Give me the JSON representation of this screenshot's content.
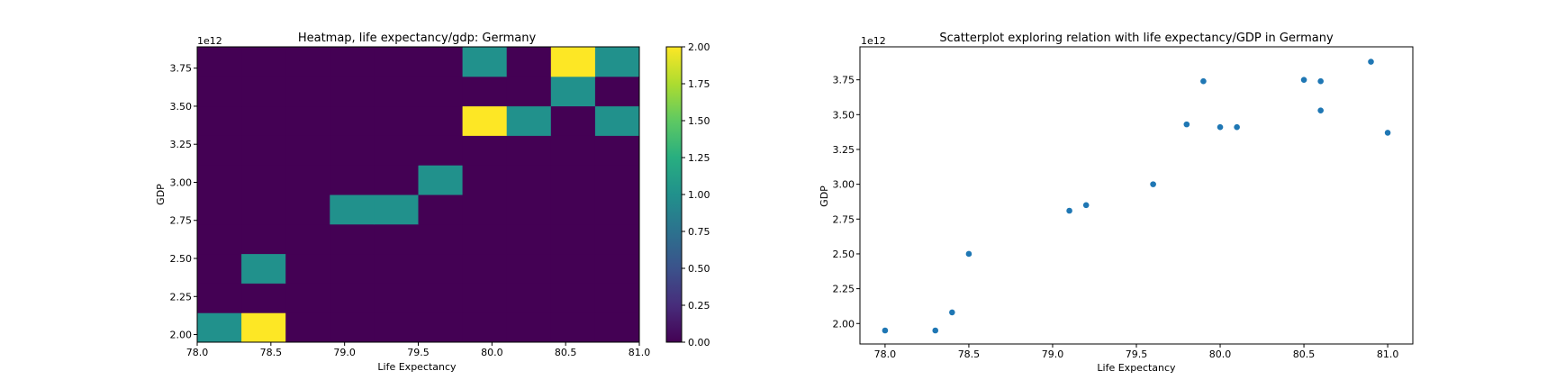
{
  "chart_data": [
    {
      "type": "heatmap",
      "title": "Heatmap, life expectancy/gdp: Germany",
      "xlabel": "Life Expectancy",
      "ylabel": "GDP",
      "y_offset_label": "1e12",
      "xlim": [
        78.0,
        81.0
      ],
      "ylim": [
        1.95,
        3.89
      ],
      "x_edges": [
        78.0,
        78.3,
        78.6,
        78.9,
        79.2,
        79.5,
        79.8,
        80.1,
        80.4,
        80.7,
        81.0
      ],
      "y_edges": [
        1.95,
        2.144,
        2.338,
        2.532,
        2.726,
        2.92,
        3.114,
        3.308,
        3.502,
        3.696,
        3.89
      ],
      "counts": [
        [
          1,
          2,
          0,
          0,
          0,
          0,
          0,
          0,
          0,
          0
        ],
        [
          0,
          0,
          0,
          0,
          0,
          0,
          0,
          0,
          0,
          0
        ],
        [
          0,
          1,
          0,
          0,
          0,
          0,
          0,
          0,
          0,
          0
        ],
        [
          0,
          0,
          0,
          0,
          0,
          0,
          0,
          0,
          0,
          0
        ],
        [
          0,
          0,
          0,
          1,
          1,
          0,
          0,
          0,
          0,
          0
        ],
        [
          0,
          0,
          0,
          0,
          0,
          1,
          0,
          0,
          0,
          0
        ],
        [
          0,
          0,
          0,
          0,
          0,
          0,
          0,
          0,
          0,
          0
        ],
        [
          0,
          0,
          0,
          0,
          0,
          0,
          2,
          1,
          0,
          1
        ],
        [
          0,
          0,
          0,
          0,
          0,
          0,
          0,
          0,
          1,
          0
        ],
        [
          0,
          0,
          0,
          0,
          0,
          0,
          1,
          0,
          2,
          1
        ]
      ],
      "x_ticks": [
        "78.0",
        "78.5",
        "79.0",
        "79.5",
        "80.0",
        "80.5",
        "81.0"
      ],
      "x_tick_values": [
        78.0,
        78.5,
        79.0,
        79.5,
        80.0,
        80.5,
        81.0
      ],
      "y_ticks": [
        "2.00",
        "2.25",
        "2.50",
        "2.75",
        "3.00",
        "3.25",
        "3.50",
        "3.75"
      ],
      "y_tick_values": [
        2.0,
        2.25,
        2.5,
        2.75,
        3.0,
        3.25,
        3.5,
        3.75
      ],
      "colorbar": {
        "colormap": "viridis",
        "range": [
          0,
          2
        ],
        "ticks": [
          "0.00",
          "0.25",
          "0.50",
          "0.75",
          "1.00",
          "1.25",
          "1.50",
          "1.75",
          "2.00"
        ],
        "tick_values": [
          0,
          0.25,
          0.5,
          0.75,
          1.0,
          1.25,
          1.5,
          1.75,
          2.0
        ]
      }
    },
    {
      "type": "scatter",
      "title": "Scatterplot exploring relation with life expectancy/GDP in Germany",
      "xlabel": "Life Expectancy",
      "ylabel": "GDP",
      "y_offset_label": "1e12",
      "xlim": [
        77.85,
        81.15
      ],
      "ylim": [
        1.853,
        3.987
      ],
      "marker_color": "#1f77b4",
      "x": [
        78.0,
        78.3,
        78.4,
        78.5,
        79.1,
        79.2,
        79.6,
        79.8,
        79.9,
        80.0,
        80.1,
        80.5,
        80.6,
        80.6,
        80.9,
        81.0
      ],
      "y": [
        1.95,
        1.95,
        2.08,
        2.5,
        2.81,
        2.85,
        3.0,
        3.43,
        3.74,
        3.41,
        3.41,
        3.75,
        3.74,
        3.53,
        3.88,
        3.37
      ],
      "x_ticks": [
        "78.0",
        "78.5",
        "79.0",
        "79.5",
        "80.0",
        "80.5",
        "81.0"
      ],
      "x_tick_values": [
        78.0,
        78.5,
        79.0,
        79.5,
        80.0,
        80.5,
        81.0
      ],
      "y_ticks": [
        "2.00",
        "2.25",
        "2.50",
        "2.75",
        "3.00",
        "3.25",
        "3.50",
        "3.75"
      ],
      "y_tick_values": [
        2.0,
        2.25,
        2.5,
        2.75,
        3.0,
        3.25,
        3.5,
        3.75
      ]
    }
  ]
}
